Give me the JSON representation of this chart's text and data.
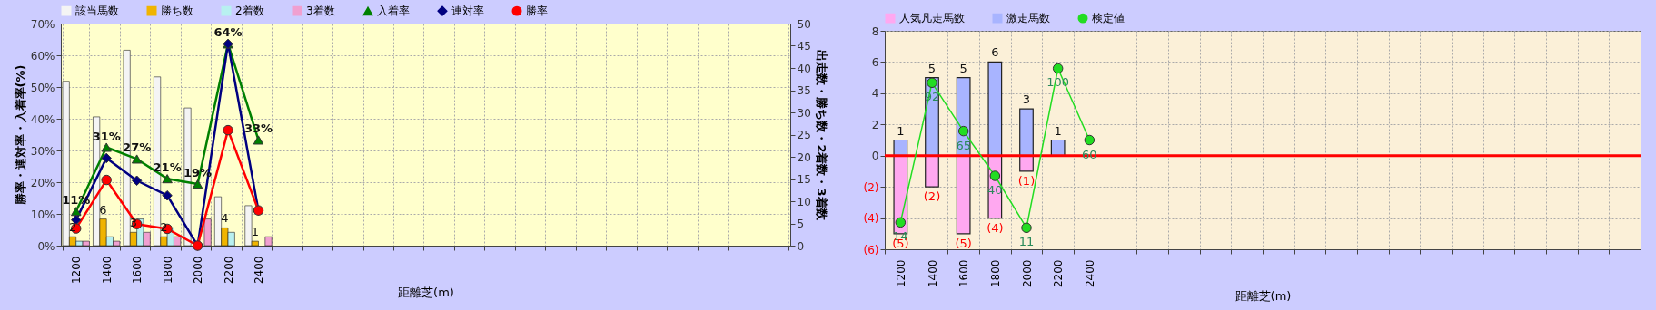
{
  "chart_data": [
    {
      "type": "bar",
      "xlabel": "距離芝(m)",
      "ylabel": "勝率・連対率・入着率(%)",
      "y2label": "出走数・勝ち数・2着数・3着数",
      "categories": [
        "1200",
        "1400",
        "1600",
        "1800",
        "2000",
        "2200",
        "2400",
        null,
        null,
        null,
        null,
        null,
        null,
        null,
        null,
        null,
        null,
        null,
        null,
        null,
        null,
        null,
        null,
        null
      ],
      "ylim": [
        0,
        70
      ],
      "yticks": [
        {
          "value": 0,
          "label": "0%"
        },
        {
          "value": 10,
          "label": "10%"
        },
        {
          "value": 20,
          "label": "20%"
        },
        {
          "value": 30,
          "label": "30%"
        },
        {
          "value": 40,
          "label": "40%"
        },
        {
          "value": 50,
          "label": "50%"
        },
        {
          "value": 60,
          "label": "60%"
        },
        {
          "value": 70,
          "label": "70%"
        }
      ],
      "y2lim": [
        0,
        50
      ],
      "y2ticks": [
        0,
        5,
        10,
        15,
        20,
        25,
        30,
        35,
        40,
        45,
        50
      ],
      "grid": true,
      "legend": "top",
      "series": [
        {
          "name": "該当馬数",
          "color": "#f4f4f4",
          "axis": "y2",
          "values": [
            37,
            29,
            44,
            38,
            31,
            11,
            9,
            null,
            null,
            null,
            null,
            null,
            null,
            null,
            null,
            null,
            null,
            null,
            null,
            null,
            null,
            null,
            null,
            null
          ]
        },
        {
          "name": "勝ち数",
          "color": "#f0b400",
          "axis": "y2",
          "values": [
            2,
            6,
            3,
            2,
            0,
            4,
            1,
            null,
            null,
            null,
            null,
            null,
            null,
            null,
            null,
            null,
            null,
            null,
            null,
            null,
            null,
            null,
            null,
            null
          ],
          "value_labels": [
            "2",
            "6",
            "3",
            "2",
            null,
            "4",
            "1",
            null,
            null,
            null,
            null,
            null,
            null,
            null,
            null,
            null,
            null,
            null,
            null,
            null,
            null,
            null,
            null,
            null
          ]
        },
        {
          "name": "2着数",
          "color": "#b8f0f0",
          "axis": "y2",
          "values": [
            1,
            2,
            6,
            4,
            0,
            3,
            0,
            null,
            null,
            null,
            null,
            null,
            null,
            null,
            null,
            null,
            null,
            null,
            null,
            null,
            null,
            null,
            null,
            null
          ]
        },
        {
          "name": "3着数",
          "color": "#f0a0d0",
          "axis": "y2",
          "values": [
            1,
            1,
            3,
            2,
            6,
            0,
            2,
            null,
            null,
            null,
            null,
            null,
            null,
            null,
            null,
            null,
            null,
            null,
            null,
            null,
            null,
            null,
            null,
            null
          ]
        },
        {
          "name": "入着率",
          "type": "line",
          "marker": "triangle",
          "color": "#008000",
          "values": [
            10.8,
            31.0,
            27.3,
            21.1,
            19.4,
            63.6,
            33.3,
            null,
            null,
            null,
            null,
            null,
            null,
            null,
            null,
            null,
            null,
            null,
            null,
            null,
            null,
            null,
            null,
            null
          ],
          "value_labels": [
            "11%",
            "31%",
            "27%",
            "21%",
            "19%",
            "64%",
            "33%",
            null,
            null,
            null,
            null,
            null,
            null,
            null,
            null,
            null,
            null,
            null,
            null,
            null,
            null,
            null,
            null,
            null
          ]
        },
        {
          "name": "連対率",
          "type": "line",
          "marker": "diamond",
          "color": "#000080",
          "values": [
            8.1,
            27.6,
            20.5,
            15.8,
            0,
            63.6,
            11.1,
            null,
            null,
            null,
            null,
            null,
            null,
            null,
            null,
            null,
            null,
            null,
            null,
            null,
            null,
            null,
            null,
            null
          ]
        },
        {
          "name": "勝率",
          "type": "line",
          "marker": "circle",
          "color": "#ff0000",
          "values": [
            5.4,
            20.7,
            6.8,
            5.3,
            0,
            36.4,
            11.1,
            null,
            null,
            null,
            null,
            null,
            null,
            null,
            null,
            null,
            null,
            null,
            null,
            null,
            null,
            null,
            null,
            null
          ]
        }
      ]
    },
    {
      "type": "bar",
      "stacked": true,
      "xlabel": "距離芝(m)",
      "categories": [
        "1200",
        "1400",
        "1600",
        "1800",
        "2000",
        "2200",
        "2400",
        null,
        null,
        null,
        null,
        null,
        null,
        null,
        null,
        null,
        null,
        null,
        null,
        null,
        null,
        null,
        null,
        null
      ],
      "ylim": [
        -6,
        8
      ],
      "yticks": [
        {
          "value": -6,
          "label": "(6)"
        },
        {
          "value": -4,
          "label": "(4)"
        },
        {
          "value": -2,
          "label": "(2)"
        },
        0,
        2,
        4,
        6,
        8
      ],
      "y2lim": [
        -1,
        121
      ],
      "tick_labels": "xy",
      "grid": true,
      "legend": "top",
      "ref_lines": [
        {
          "axis": "y",
          "value": 0,
          "color": "#ff0000"
        }
      ],
      "series": [
        {
          "name": "人気凡走馬数",
          "color": "#ffa8f0",
          "values": [
            -5,
            -2,
            -5,
            -4,
            -1,
            0,
            0,
            null,
            null,
            null,
            null,
            null,
            null,
            null,
            null,
            null,
            null,
            null,
            null,
            null,
            null,
            null,
            null,
            null
          ],
          "value_labels": [
            "(5)",
            "(2)",
            "(5)",
            "(4)",
            "(1)",
            null,
            null,
            null,
            null,
            null,
            null,
            null,
            null,
            null,
            null,
            null,
            null,
            null,
            null,
            null,
            null,
            null,
            null,
            null
          ]
        },
        {
          "name": "激走馬数",
          "color": "#a8b4ff",
          "values": [
            1,
            5,
            5,
            6,
            3,
            1,
            0,
            null,
            null,
            null,
            null,
            null,
            null,
            null,
            null,
            null,
            null,
            null,
            null,
            null,
            null,
            null,
            null,
            null
          ],
          "value_labels": [
            "1",
            "5",
            "5",
            "6",
            "3",
            "1",
            null,
            null,
            null,
            null,
            null,
            null,
            null,
            null,
            null,
            null,
            null,
            null,
            null,
            null,
            null,
            null,
            null,
            null
          ]
        },
        {
          "name": "検定値",
          "type": "line",
          "marker": "circle",
          "axis": "y2",
          "color": "#22dd22",
          "values": [
            14,
            92,
            65,
            40,
            11,
            100,
            60,
            null,
            null,
            null,
            null,
            null,
            null,
            null,
            null,
            null,
            null,
            null,
            null,
            null,
            null,
            null,
            null,
            null
          ],
          "value_labels": [
            "14",
            "92",
            "65",
            "40",
            "11",
            "100",
            "60",
            null,
            null,
            null,
            null,
            null,
            null,
            null,
            null,
            null,
            null,
            null,
            null,
            null,
            null,
            null,
            null,
            null
          ]
        }
      ]
    }
  ]
}
